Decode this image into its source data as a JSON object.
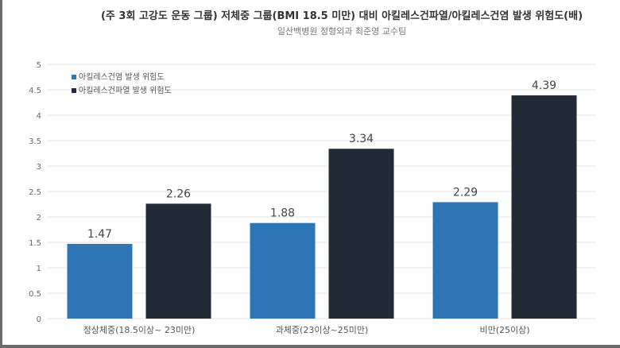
{
  "chart_data": {
    "type": "bar",
    "title": "(주 3회 고강도 운동 그룹) 저체중 그룹(BMI 18.5 미만) 대비 아킬레스건파열/아킬레스건염 발생 위험도(배)",
    "subtitle": "일산백병원 정형외과 최준영 교수팀",
    "categories": [
      "정상체중(18.5이상~ 23미만)",
      "과체중(23이상~25미만)",
      "비만(25이상)"
    ],
    "series": [
      {
        "name": "아킬레스건염 발생 위험도",
        "color": "#2e75b6",
        "values": [
          1.47,
          1.88,
          2.29
        ],
        "labels": [
          "1.47",
          "1.88",
          "2.29"
        ]
      },
      {
        "name": "아킬레스건파열 발생 위험도",
        "color": "#222a35",
        "values": [
          2.26,
          3.34,
          4.39
        ],
        "labels": [
          "2.26",
          "3.34",
          "4.39"
        ]
      }
    ],
    "yticks": [
      "0",
      "0.5",
      "1",
      "1.5",
      "2",
      "2.5",
      "3",
      "3.5",
      "4",
      "4.5",
      "5"
    ],
    "ylim": [
      0,
      5
    ],
    "grid": true,
    "legend": "top-left"
  }
}
